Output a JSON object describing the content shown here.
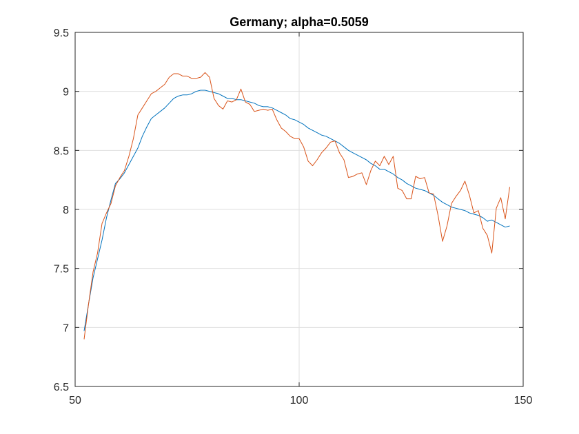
{
  "chart_data": {
    "type": "line",
    "title": "Germany; alpha=0.5059",
    "xlabel": "",
    "ylabel": "",
    "xlim": [
      50,
      150
    ],
    "ylim": [
      6.5,
      9.5
    ],
    "xticks": [
      50,
      100,
      150
    ],
    "yticks": [
      6.5,
      7,
      7.5,
      8,
      8.5,
      9,
      9.5
    ],
    "xtick_labels": [
      "50",
      "100",
      "150"
    ],
    "ytick_labels": [
      "6.5",
      "7",
      "7.5",
      "8",
      "8.5",
      "9",
      "9.5"
    ],
    "grid": true,
    "series": [
      {
        "color": "#0072BD",
        "x": [
          52,
          53,
          54,
          55,
          56,
          57,
          58,
          59,
          60,
          61,
          62,
          63,
          64,
          65,
          66,
          67,
          68,
          69,
          70,
          71,
          72,
          73,
          74,
          75,
          76,
          77,
          78,
          79,
          80,
          81,
          82,
          83,
          84,
          85,
          86,
          87,
          88,
          89,
          90,
          91,
          92,
          93,
          94,
          95,
          96,
          97,
          98,
          99,
          100,
          101,
          102,
          103,
          104,
          105,
          106,
          107,
          108,
          109,
          110,
          111,
          112,
          113,
          114,
          115,
          116,
          117,
          118,
          119,
          120,
          121,
          122,
          123,
          124,
          125,
          126,
          127,
          128,
          129,
          130,
          131,
          132,
          133,
          134,
          135,
          136,
          137,
          138,
          139,
          140,
          141,
          142,
          143,
          144,
          145,
          146,
          147
        ],
        "y": [
          6.97,
          7.2,
          7.42,
          7.58,
          7.74,
          7.93,
          8.08,
          8.22,
          8.26,
          8.31,
          8.38,
          8.45,
          8.52,
          8.62,
          8.7,
          8.77,
          8.8,
          8.83,
          8.86,
          8.9,
          8.94,
          8.96,
          8.97,
          8.97,
          8.98,
          9.0,
          9.01,
          9.01,
          9.0,
          8.99,
          8.98,
          8.96,
          8.94,
          8.94,
          8.93,
          8.93,
          8.92,
          8.91,
          8.9,
          8.88,
          8.87,
          8.87,
          8.86,
          8.84,
          8.82,
          8.8,
          8.77,
          8.76,
          8.74,
          8.72,
          8.69,
          8.67,
          8.65,
          8.63,
          8.62,
          8.6,
          8.58,
          8.56,
          8.53,
          8.5,
          8.48,
          8.46,
          8.44,
          8.42,
          8.39,
          8.37,
          8.34,
          8.34,
          8.32,
          8.3,
          8.27,
          8.25,
          8.22,
          8.2,
          8.18,
          8.17,
          8.16,
          8.14,
          8.12,
          8.09,
          8.06,
          8.04,
          8.02,
          8.01,
          8.0,
          7.99,
          7.97,
          7.96,
          7.95,
          7.93,
          7.9,
          7.91,
          7.89,
          7.87,
          7.85,
          7.86
        ]
      },
      {
        "color": "#D95319",
        "x": [
          52,
          53,
          54,
          55,
          56,
          57,
          58,
          59,
          60,
          61,
          62,
          63,
          64,
          65,
          66,
          67,
          68,
          69,
          70,
          71,
          72,
          73,
          74,
          75,
          76,
          77,
          78,
          79,
          80,
          81,
          82,
          83,
          84,
          85,
          86,
          87,
          88,
          89,
          90,
          91,
          92,
          93,
          94,
          95,
          96,
          97,
          98,
          99,
          100,
          101,
          102,
          103,
          104,
          105,
          106,
          107,
          108,
          109,
          110,
          111,
          112,
          113,
          114,
          115,
          116,
          117,
          118,
          119,
          120,
          121,
          122,
          123,
          124,
          125,
          126,
          127,
          128,
          129,
          130,
          131,
          132,
          133,
          134,
          135,
          136,
          137,
          138,
          139,
          140,
          141,
          142,
          143,
          144,
          145,
          146,
          147
        ],
        "y": [
          6.9,
          7.2,
          7.47,
          7.63,
          7.88,
          7.97,
          8.05,
          8.2,
          8.27,
          8.33,
          8.45,
          8.6,
          8.8,
          8.86,
          8.92,
          8.98,
          9.0,
          9.03,
          9.06,
          9.12,
          9.15,
          9.15,
          9.13,
          9.13,
          9.11,
          9.11,
          9.12,
          9.16,
          9.12,
          8.94,
          8.88,
          8.85,
          8.92,
          8.91,
          8.93,
          9.02,
          8.91,
          8.89,
          8.83,
          8.84,
          8.85,
          8.84,
          8.85,
          8.76,
          8.69,
          8.66,
          8.62,
          8.6,
          8.6,
          8.53,
          8.41,
          8.37,
          8.42,
          8.48,
          8.52,
          8.57,
          8.58,
          8.48,
          8.42,
          8.27,
          8.28,
          8.3,
          8.31,
          8.21,
          8.33,
          8.41,
          8.37,
          8.45,
          8.38,
          8.45,
          8.18,
          8.16,
          8.09,
          8.09,
          8.28,
          8.26,
          8.27,
          8.14,
          8.13,
          7.95,
          7.73,
          7.86,
          8.05,
          8.11,
          8.16,
          8.24,
          8.12,
          7.97,
          7.99,
          7.84,
          7.78,
          7.63,
          8.01,
          8.1,
          7.92,
          8.19
        ]
      }
    ]
  }
}
